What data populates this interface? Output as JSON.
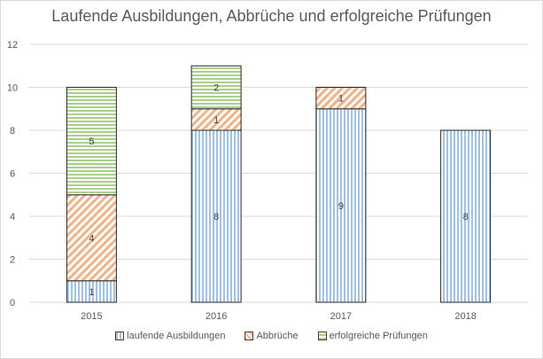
{
  "chart_data": {
    "type": "bar",
    "stacked": true,
    "title": "Laufende Ausbildungen, Abbrüche und erfolgreiche Prüfungen",
    "categories": [
      "2015",
      "2016",
      "2017",
      "2018"
    ],
    "series": [
      {
        "name": "laufende Ausbildungen",
        "values": [
          1,
          8,
          9,
          8
        ],
        "color": "#9dc3e6",
        "pattern": "vertical-stripes"
      },
      {
        "name": "Abbrüche",
        "values": [
          4,
          1,
          1,
          0
        ],
        "color": "#f4b183",
        "pattern": "diagonal-stripes"
      },
      {
        "name": "erfolgreiche Prüfungen",
        "values": [
          5,
          2,
          0,
          0
        ],
        "color": "#a9d18e",
        "pattern": "horizontal-stripes"
      }
    ],
    "ylim": [
      0,
      12
    ],
    "yticks": [
      "0",
      "2",
      "4",
      "6",
      "8",
      "10",
      "12"
    ],
    "grid": true,
    "legend_position": "bottom"
  }
}
